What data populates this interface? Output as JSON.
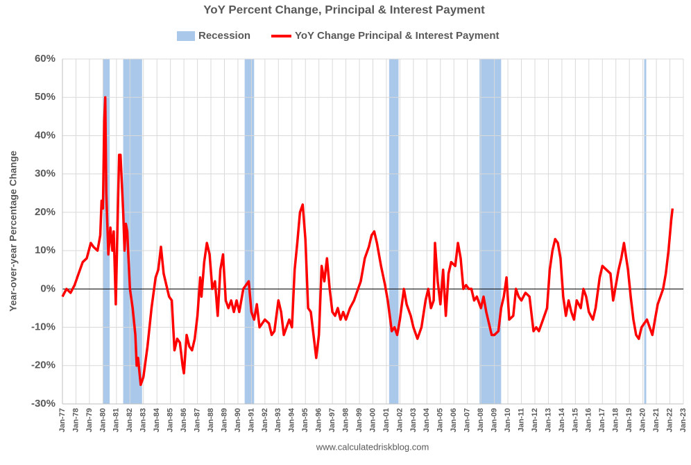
{
  "chart_data": {
    "type": "line",
    "title": "YoY Percent Change, Principal & Interest Payment",
    "ylabel": "Year-over-year Percentage Change",
    "source": "www.calculatedriskblog.com",
    "xlim": [
      1977,
      2023
    ],
    "ylim": [
      -30,
      60
    ],
    "grid": true,
    "yticks": [
      {
        "value": -30,
        "label": "-30%"
      },
      {
        "value": -20,
        "label": "-20%"
      },
      {
        "value": -10,
        "label": "-10%"
      },
      {
        "value": 0,
        "label": "0%"
      },
      {
        "value": 10,
        "label": "10%"
      },
      {
        "value": 20,
        "label": "20%"
      },
      {
        "value": 30,
        "label": "30%"
      },
      {
        "value": 40,
        "label": "40%"
      },
      {
        "value": 50,
        "label": "50%"
      },
      {
        "value": 60,
        "label": "60%"
      }
    ],
    "xticks": [
      {
        "value": 1977,
        "label": "Jan-77"
      },
      {
        "value": 1978,
        "label": "Jan-78"
      },
      {
        "value": 1979,
        "label": "Jan-79"
      },
      {
        "value": 1980,
        "label": "Jan-80"
      },
      {
        "value": 1981,
        "label": "Jan-81"
      },
      {
        "value": 1982,
        "label": "Jan-82"
      },
      {
        "value": 1983,
        "label": "Jan-83"
      },
      {
        "value": 1984,
        "label": "Jan-84"
      },
      {
        "value": 1985,
        "label": "Jan-85"
      },
      {
        "value": 1986,
        "label": "Jan-86"
      },
      {
        "value": 1987,
        "label": "Jan-87"
      },
      {
        "value": 1988,
        "label": "Jan-88"
      },
      {
        "value": 1989,
        "label": "Jan-89"
      },
      {
        "value": 1990,
        "label": "Jan-90"
      },
      {
        "value": 1991,
        "label": "Jan-91"
      },
      {
        "value": 1992,
        "label": "Jan-92"
      },
      {
        "value": 1993,
        "label": "Jan-93"
      },
      {
        "value": 1994,
        "label": "Jan-94"
      },
      {
        "value": 1995,
        "label": "Jan-95"
      },
      {
        "value": 1996,
        "label": "Jan-96"
      },
      {
        "value": 1997,
        "label": "Jan-97"
      },
      {
        "value": 1998,
        "label": "Jan-98"
      },
      {
        "value": 1999,
        "label": "Jan-99"
      },
      {
        "value": 2000,
        "label": "Jan-00"
      },
      {
        "value": 2001,
        "label": "Jan-01"
      },
      {
        "value": 2002,
        "label": "Jan-02"
      },
      {
        "value": 2003,
        "label": "Jan-03"
      },
      {
        "value": 2004,
        "label": "Jan-04"
      },
      {
        "value": 2005,
        "label": "Jan-05"
      },
      {
        "value": 2006,
        "label": "Jan-06"
      },
      {
        "value": 2007,
        "label": "Jan-07"
      },
      {
        "value": 2008,
        "label": "Jan-08"
      },
      {
        "value": 2009,
        "label": "Jan-09"
      },
      {
        "value": 2010,
        "label": "Jan-10"
      },
      {
        "value": 2011,
        "label": "Jan-11"
      },
      {
        "value": 2012,
        "label": "Jan-12"
      },
      {
        "value": 2013,
        "label": "Jan-13"
      },
      {
        "value": 2014,
        "label": "Jan-14"
      },
      {
        "value": 2015,
        "label": "Jan-15"
      },
      {
        "value": 2016,
        "label": "Jan-16"
      },
      {
        "value": 2017,
        "label": "Jan-17"
      },
      {
        "value": 2018,
        "label": "Jan-18"
      },
      {
        "value": 2019,
        "label": "Jan-19"
      },
      {
        "value": 2020,
        "label": "Jan-20"
      },
      {
        "value": 2021,
        "label": "Jan-21"
      },
      {
        "value": 2022,
        "label": "Jan-22"
      },
      {
        "value": 2023,
        "label": "Jan-23"
      }
    ],
    "recessions": {
      "name": "Recession",
      "color": "#a9c8ea",
      "periods": [
        [
          1980.0,
          1980.5
        ],
        [
          1981.5,
          1982.9
        ],
        [
          1990.5,
          1991.2
        ],
        [
          2001.2,
          2001.9
        ],
        [
          2007.9,
          2009.5
        ],
        [
          2020.1,
          2020.25
        ]
      ]
    },
    "x": [
      1977.0,
      1977.3,
      1977.6,
      1977.9,
      1978.2,
      1978.5,
      1978.8,
      1979.1,
      1979.3,
      1979.6,
      1979.8,
      1979.9,
      1980.0,
      1980.1,
      1980.17,
      1980.25,
      1980.4,
      1980.55,
      1980.7,
      1980.8,
      1980.95,
      1981.1,
      1981.2,
      1981.3,
      1981.5,
      1981.6,
      1981.7,
      1981.8,
      1982.0,
      1982.2,
      1982.4,
      1982.5,
      1982.6,
      1982.8,
      1983.0,
      1983.3,
      1983.6,
      1983.9,
      1984.1,
      1984.3,
      1984.5,
      1984.7,
      1984.9,
      1985.1,
      1985.3,
      1985.5,
      1985.7,
      1985.9,
      1986.0,
      1986.2,
      1986.4,
      1986.6,
      1986.8,
      1987.0,
      1987.2,
      1987.3,
      1987.5,
      1987.7,
      1987.9,
      1988.1,
      1988.3,
      1988.5,
      1988.7,
      1988.9,
      1989.1,
      1989.3,
      1989.5,
      1989.7,
      1989.9,
      1990.1,
      1990.4,
      1990.6,
      1990.8,
      1991.0,
      1991.2,
      1991.4,
      1991.6,
      1991.8,
      1992.0,
      1992.3,
      1992.5,
      1992.7,
      1993.0,
      1993.2,
      1993.4,
      1993.6,
      1993.8,
      1994.0,
      1994.2,
      1994.4,
      1994.6,
      1994.8,
      1995.0,
      1995.2,
      1995.4,
      1995.6,
      1995.8,
      1996.0,
      1996.2,
      1996.4,
      1996.6,
      1996.8,
      1997.0,
      1997.2,
      1997.4,
      1997.6,
      1997.8,
      1998.0,
      1998.3,
      1998.6,
      1998.9,
      1999.1,
      1999.4,
      1999.7,
      1999.9,
      2000.1,
      2000.3,
      2000.6,
      2000.9,
      2001.1,
      2001.4,
      2001.6,
      2001.8,
      2002.0,
      2002.3,
      2002.5,
      2002.8,
      2003.0,
      2003.3,
      2003.6,
      2003.9,
      2004.1,
      2004.3,
      2004.5,
      2004.6,
      2004.8,
      2005.0,
      2005.2,
      2005.4,
      2005.6,
      2005.8,
      2006.1,
      2006.3,
      2006.5,
      2006.7,
      2006.9,
      2007.1,
      2007.3,
      2007.5,
      2007.7,
      2008.0,
      2008.2,
      2008.4,
      2008.6,
      2008.8,
      2009.0,
      2009.3,
      2009.5,
      2009.7,
      2009.9,
      2010.1,
      2010.4,
      2010.6,
      2010.8,
      2011.0,
      2011.3,
      2011.6,
      2011.9,
      2012.1,
      2012.3,
      2012.6,
      2012.9,
      2013.1,
      2013.3,
      2013.5,
      2013.7,
      2013.9,
      2014.1,
      2014.3,
      2014.5,
      2014.7,
      2014.9,
      2015.1,
      2015.4,
      2015.6,
      2015.8,
      2016.0,
      2016.3,
      2016.5,
      2016.8,
      2017.0,
      2017.3,
      2017.6,
      2017.8,
      2018.0,
      2018.2,
      2018.4,
      2018.6,
      2018.9,
      2019.1,
      2019.3,
      2019.5,
      2019.7,
      2019.9,
      2020.1,
      2020.3,
      2020.5,
      2020.7,
      2020.9,
      2021.1,
      2021.3,
      2021.5,
      2021.7,
      2021.9,
      2022.1,
      2022.2
    ],
    "series": [
      {
        "name": "YoY Change Principal & Interest Payment",
        "color": "#ff0000",
        "values": [
          -2,
          0,
          -1,
          1,
          4,
          7,
          8,
          12,
          11,
          10,
          14,
          23,
          21,
          44,
          50,
          25,
          9,
          16,
          10,
          15,
          -4,
          20,
          35,
          35,
          20,
          10,
          17,
          15,
          0,
          -5,
          -12,
          -20,
          -18,
          -25,
          -23,
          -15,
          -5,
          3,
          5,
          11,
          4,
          1,
          -2,
          -3,
          -16,
          -13,
          -14,
          -20,
          -22,
          -12,
          -15,
          -16,
          -13,
          -7,
          3,
          -2,
          7,
          12,
          9,
          0,
          2,
          -7,
          5,
          9,
          -3,
          -5,
          -3,
          -6,
          -3,
          -6,
          0,
          1,
          2,
          -6,
          -8,
          -4,
          -10,
          -9,
          -8,
          -9,
          -12,
          -11,
          -3,
          -6,
          -12,
          -10,
          -8,
          -10,
          5,
          12,
          20,
          22,
          13,
          -5,
          -6,
          -12,
          -18,
          -12,
          6,
          2,
          8,
          0,
          -6,
          -7,
          -5,
          -8,
          -6,
          -8,
          -5,
          -3,
          0,
          2,
          8,
          11,
          14,
          15,
          12,
          6,
          1,
          -3,
          -11,
          -10,
          -12,
          -8,
          0,
          -4,
          -7,
          -10,
          -13,
          -10,
          -3,
          0,
          -5,
          -3,
          12,
          2,
          -4,
          5,
          -7,
          4,
          7,
          6,
          12,
          8,
          0,
          1,
          0,
          0,
          -3,
          -2,
          -5,
          -2,
          -6,
          -9,
          -12,
          -12,
          -11,
          -5,
          -2,
          3,
          -8,
          -7,
          0,
          -2,
          -3,
          -1,
          -2,
          -11,
          -10,
          -11,
          -8,
          -5,
          5,
          10,
          13,
          12,
          8,
          -2,
          -7,
          -3,
          -6,
          -8,
          -3,
          -5,
          0,
          -2,
          -6,
          -8,
          -5,
          3,
          6,
          5,
          4,
          -3,
          1,
          5,
          8,
          12,
          5,
          -2,
          -8,
          -12,
          -13,
          -10,
          -9,
          -8,
          -10,
          -12,
          -8,
          -4,
          -2,
          0,
          4,
          10,
          18,
          21
        ]
      }
    ]
  }
}
